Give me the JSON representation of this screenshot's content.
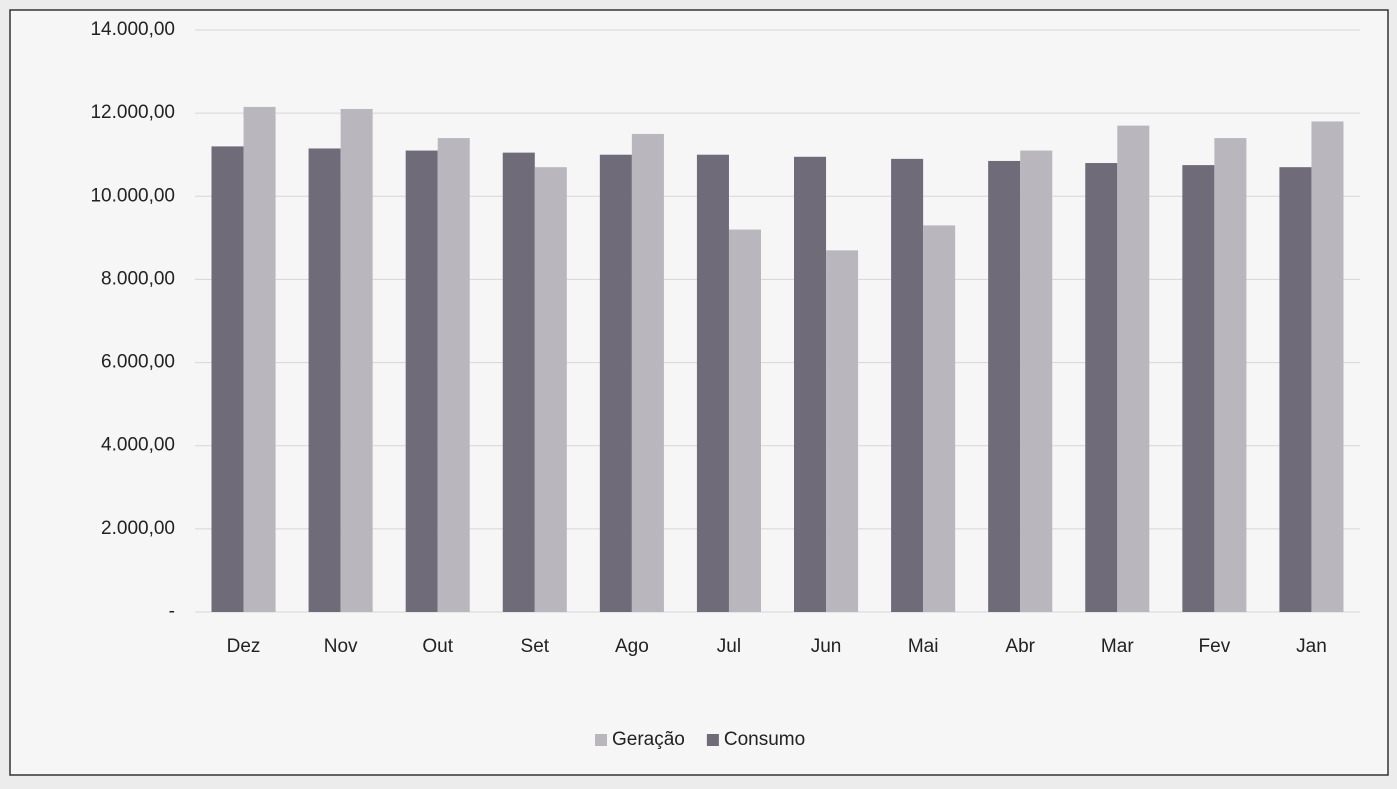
{
  "chart_data": {
    "type": "bar",
    "categories": [
      "Dez",
      "Nov",
      "Out",
      "Set",
      "Ago",
      "Jul",
      "Jun",
      "Mai",
      "Abr",
      "Mar",
      "Fev",
      "Jan"
    ],
    "series": [
      {
        "name": "Consumo",
        "color": "#6f6b78",
        "values": [
          11200,
          11150,
          11100,
          11050,
          11000,
          11000,
          10950,
          10900,
          10850,
          10800,
          10750,
          10700
        ]
      },
      {
        "name": "Geração",
        "color": "#b9b7bd",
        "values": [
          12150,
          12100,
          11400,
          10700,
          11500,
          9200,
          8700,
          9300,
          11100,
          11700,
          11400,
          11800
        ]
      }
    ],
    "ylim": [
      0,
      14000
    ],
    "yticks": [
      {
        "value": 0,
        "label": "-"
      },
      {
        "value": 2000,
        "label": "2.000,00"
      },
      {
        "value": 4000,
        "label": "4.000,00"
      },
      {
        "value": 6000,
        "label": "6.000,00"
      },
      {
        "value": 8000,
        "label": "8.000,00"
      },
      {
        "value": 10000,
        "label": "10.000,00"
      },
      {
        "value": 12000,
        "label": "12.000,00"
      },
      {
        "value": 14000,
        "label": "14.000,00"
      }
    ],
    "grid": true,
    "legend": "bottom"
  }
}
